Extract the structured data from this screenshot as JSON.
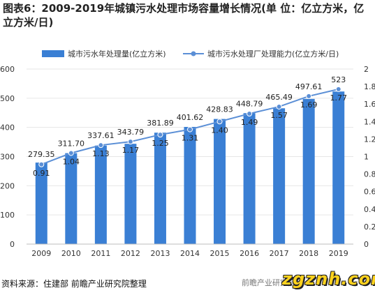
{
  "title": "图表6：2009-2019年城镇污水处理市场容量增长情况(单 位：亿立方米，亿立方米/日)",
  "source": "资料来源：住建部 前瞻产业研究院整理",
  "watermark_site": "zgznh.com",
  "watermark_brand": "前瞻产业研究院",
  "colors": {
    "bar": "#3a7fd4",
    "line": "#5b8fd6",
    "grid": "#e6e6e6"
  },
  "chart_data": {
    "type": "bar",
    "categories": [
      "2009",
      "2010",
      "2011",
      "2012",
      "2013",
      "2014",
      "2015",
      "2016",
      "2017",
      "2018",
      "2019"
    ],
    "series": [
      {
        "name": "城市污水年处理量(亿立方米)",
        "type": "bar",
        "axis": "left",
        "values": [
          279.35,
          311.7,
          337.61,
          343.79,
          381.89,
          401.62,
          428.83,
          448.79,
          465.49,
          497.61,
          523
        ],
        "labels": [
          "279.35",
          "311.70",
          "337.61",
          "343.79",
          "381.89",
          "401.62",
          "428.83",
          "448.79",
          "465.49",
          "497.61",
          "523"
        ]
      },
      {
        "name": "城市污水处理厂处理能力(亿立方米/日)",
        "type": "line",
        "axis": "right",
        "values": [
          0.91,
          1.04,
          1.13,
          1.17,
          1.25,
          1.31,
          1.4,
          1.49,
          1.57,
          1.69,
          1.77
        ],
        "labels": [
          "0.91",
          "1.04",
          "1.13",
          "1.17",
          "1.25",
          "1.31",
          "1.40",
          "1.49",
          "1.57",
          "1.69",
          "1.77"
        ]
      }
    ],
    "y_left": {
      "min": 0,
      "max": 600,
      "ticks": [
        "0",
        "100",
        "200",
        "300",
        "400",
        "500",
        "600"
      ]
    },
    "y_right": {
      "min": 0,
      "max": 2,
      "ticks": [
        "0",
        "0.2",
        "0.4",
        "0.6",
        "0.8",
        "1",
        "1.2",
        "1.4",
        "1.6",
        "1.8",
        "2"
      ]
    },
    "grid": true,
    "legend_position": "top"
  }
}
